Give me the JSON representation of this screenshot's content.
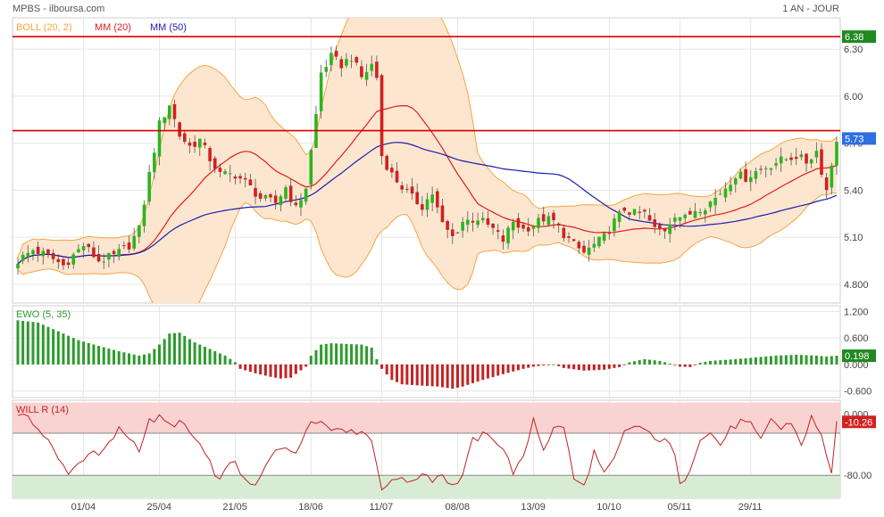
{
  "header": {
    "symbol_source": "MPBS - ilboursa.com",
    "period": "1 AN - JOUR"
  },
  "colors": {
    "boll_fill": "#fde6cf",
    "boll_line": "#f4a544",
    "mm20": "#e31b1b",
    "mm50": "#1b1bb0",
    "up": "#2bb51f",
    "down": "#d12020",
    "hline": "#d10000",
    "ewo_pos": "#2e9a2e",
    "ewo_neg": "#c22323",
    "will_line": "#c22323",
    "will_overbought": "#f9d2d2",
    "will_oversold": "#d8ecd5",
    "badge_green": "#1f8a1f",
    "badge_blue": "#2f6fe0",
    "badge_red": "#d32020",
    "grid": "#e6e6e6"
  },
  "chart_data": [
    {
      "type": "candlestick",
      "legend": [
        {
          "label": "BOLL (20, 2)",
          "color": "#f4a544"
        },
        {
          "label": "MM (20)",
          "color": "#e31b1b"
        },
        {
          "label": "MM (50)",
          "color": "#1b1bb0"
        }
      ],
      "y_ticks": [
        "6.30",
        "6.00",
        "5.70",
        "5.40",
        "5.10",
        "4.800"
      ],
      "y_tick_values": [
        6.3,
        6.0,
        5.7,
        5.4,
        5.1,
        4.8
      ],
      "ylim": [
        4.68,
        6.5
      ],
      "x_labels": [
        "01/04",
        "25/04",
        "21/05",
        "18/06",
        "11/07",
        "08/08",
        "13/09",
        "10/10",
        "05/11",
        "29/11"
      ],
      "x_label_index": [
        13,
        28,
        43,
        58,
        72,
        87,
        102,
        117,
        131,
        145
      ],
      "n_sessions": 163,
      "horizontal_lines": [
        6.38,
        5.78
      ],
      "badges": [
        {
          "text": "6.38",
          "value": 6.38,
          "color": "green"
        },
        {
          "text": "5.73",
          "value": 5.73,
          "color": "blue"
        }
      ],
      "close_anchors": [
        [
          0,
          4.95
        ],
        [
          3,
          5.02
        ],
        [
          6,
          4.98
        ],
        [
          9,
          4.92
        ],
        [
          13,
          5.05
        ],
        [
          16,
          4.95
        ],
        [
          19,
          4.98
        ],
        [
          22,
          5.05
        ],
        [
          24,
          5.15
        ],
        [
          26,
          5.5
        ],
        [
          28,
          5.82
        ],
        [
          30,
          5.95
        ],
        [
          32,
          5.75
        ],
        [
          34,
          5.68
        ],
        [
          36,
          5.72
        ],
        [
          38,
          5.6
        ],
        [
          40,
          5.5
        ],
        [
          43,
          5.5
        ],
        [
          45,
          5.45
        ],
        [
          48,
          5.35
        ],
        [
          51,
          5.32
        ],
        [
          53,
          5.42
        ],
        [
          55,
          5.28
        ],
        [
          57,
          5.42
        ],
        [
          59,
          5.88
        ],
        [
          60,
          6.15
        ],
        [
          62,
          6.25
        ],
        [
          64,
          6.2
        ],
        [
          66,
          6.25
        ],
        [
          68,
          6.12
        ],
        [
          70,
          6.2
        ],
        [
          71,
          6.12
        ],
        [
          72,
          5.62
        ],
        [
          74,
          5.5
        ],
        [
          76,
          5.42
        ],
        [
          78,
          5.35
        ],
        [
          80,
          5.3
        ],
        [
          82,
          5.38
        ],
        [
          84,
          5.18
        ],
        [
          86,
          5.1
        ],
        [
          88,
          5.2
        ],
        [
          91,
          5.22
        ],
        [
          94,
          5.15
        ],
        [
          96,
          5.08
        ],
        [
          98,
          5.2
        ],
        [
          100,
          5.15
        ],
        [
          102,
          5.18
        ],
        [
          104,
          5.22
        ],
        [
          106,
          5.2
        ],
        [
          108,
          5.12
        ],
        [
          110,
          5.05
        ],
        [
          112,
          5.0
        ],
        [
          114,
          5.05
        ],
        [
          116,
          5.1
        ],
        [
          118,
          5.2
        ],
        [
          120,
          5.28
        ],
        [
          122,
          5.25
        ],
        [
          124,
          5.25
        ],
        [
          126,
          5.15
        ],
        [
          128,
          5.15
        ],
        [
          130,
          5.25
        ],
        [
          132,
          5.22
        ],
        [
          134,
          5.28
        ],
        [
          136,
          5.3
        ],
        [
          138,
          5.35
        ],
        [
          140,
          5.42
        ],
        [
          142,
          5.5
        ],
        [
          144,
          5.48
        ],
        [
          146,
          5.52
        ],
        [
          148,
          5.55
        ],
        [
          150,
          5.58
        ],
        [
          152,
          5.6
        ],
        [
          154,
          5.62
        ],
        [
          156,
          5.58
        ],
        [
          158,
          5.65
        ],
        [
          160,
          5.4
        ],
        [
          162,
          5.73
        ]
      ]
    },
    {
      "type": "bar",
      "legend": [
        {
          "label": "EWO (5, 35)",
          "color": "#2e9a2e"
        }
      ],
      "y_ticks": [
        "1.200",
        "0.600",
        "0.000",
        "-0.600"
      ],
      "y_tick_values": [
        1.2,
        0.6,
        0.0,
        -0.6
      ],
      "ylim": [
        -0.75,
        1.33
      ],
      "badges": [
        {
          "text": "0.198",
          "value": 0.198,
          "color": "green"
        }
      ],
      "value_anchors": [
        [
          0,
          1.0
        ],
        [
          4,
          0.95
        ],
        [
          8,
          0.75
        ],
        [
          12,
          0.55
        ],
        [
          16,
          0.42
        ],
        [
          20,
          0.3
        ],
        [
          24,
          0.2
        ],
        [
          26,
          0.25
        ],
        [
          28,
          0.45
        ],
        [
          30,
          0.7
        ],
        [
          32,
          0.72
        ],
        [
          35,
          0.5
        ],
        [
          38,
          0.35
        ],
        [
          41,
          0.2
        ],
        [
          43,
          0.05
        ],
        [
          44,
          -0.1
        ],
        [
          47,
          -0.2
        ],
        [
          50,
          -0.28
        ],
        [
          52,
          -0.32
        ],
        [
          54,
          -0.3
        ],
        [
          57,
          -0.05
        ],
        [
          58,
          0.2
        ],
        [
          60,
          0.45
        ],
        [
          62,
          0.48
        ],
        [
          68,
          0.45
        ],
        [
          70,
          0.38
        ],
        [
          71,
          0.12
        ],
        [
          72,
          -0.1
        ],
        [
          74,
          -0.35
        ],
        [
          76,
          -0.45
        ],
        [
          80,
          -0.48
        ],
        [
          83,
          -0.5
        ],
        [
          86,
          -0.55
        ],
        [
          88,
          -0.5
        ],
        [
          92,
          -0.35
        ],
        [
          96,
          -0.22
        ],
        [
          100,
          -0.1
        ],
        [
          102,
          -0.05
        ],
        [
          104,
          -0.02
        ],
        [
          106,
          0.0
        ],
        [
          108,
          -0.08
        ],
        [
          112,
          -0.14
        ],
        [
          116,
          -0.12
        ],
        [
          119,
          -0.06
        ],
        [
          121,
          0.05
        ],
        [
          124,
          0.12
        ],
        [
          127,
          0.08
        ],
        [
          129,
          0.02
        ],
        [
          131,
          -0.05
        ],
        [
          133,
          -0.06
        ],
        [
          135,
          0.04
        ],
        [
          137,
          0.08
        ],
        [
          142,
          0.12
        ],
        [
          146,
          0.16
        ],
        [
          150,
          0.2
        ],
        [
          154,
          0.22
        ],
        [
          158,
          0.2
        ],
        [
          160,
          0.18
        ],
        [
          162,
          0.198
        ]
      ]
    },
    {
      "type": "line",
      "legend": [
        {
          "label": "WILL R (14)",
          "color": "#c22323"
        }
      ],
      "y_ticks": [
        "0.000",
        "-80.00"
      ],
      "y_tick_values": [
        0,
        -80
      ],
      "ylim": [
        -110,
        18
      ],
      "zones": {
        "overbought": [
          0,
          -25
        ],
        "oversold": [
          -80,
          -105
        ]
      },
      "badges": [
        {
          "text": "-10.26",
          "value": -10.26,
          "color": "red"
        }
      ],
      "value_anchors": [
        [
          0,
          -5
        ],
        [
          2,
          0
        ],
        [
          4,
          -20
        ],
        [
          6,
          -35
        ],
        [
          8,
          -60
        ],
        [
          10,
          -75
        ],
        [
          12,
          -65
        ],
        [
          14,
          -50
        ],
        [
          16,
          -55
        ],
        [
          18,
          -40
        ],
        [
          20,
          -20
        ],
        [
          22,
          -30
        ],
        [
          24,
          -45
        ],
        [
          26,
          -10
        ],
        [
          28,
          -5
        ],
        [
          30,
          -15
        ],
        [
          32,
          -10
        ],
        [
          34,
          -25
        ],
        [
          36,
          -40
        ],
        [
          38,
          -65
        ],
        [
          39,
          -85
        ],
        [
          41,
          -75
        ],
        [
          43,
          -60
        ],
        [
          45,
          -90
        ],
        [
          47,
          -95
        ],
        [
          49,
          -70
        ],
        [
          51,
          -45
        ],
        [
          53,
          -40
        ],
        [
          55,
          -55
        ],
        [
          57,
          -20
        ],
        [
          58,
          -5
        ],
        [
          60,
          -10
        ],
        [
          62,
          -20
        ],
        [
          64,
          -15
        ],
        [
          66,
          -25
        ],
        [
          68,
          -20
        ],
        [
          70,
          -35
        ],
        [
          72,
          -95
        ],
        [
          74,
          -90
        ],
        [
          76,
          -80
        ],
        [
          78,
          -92
        ],
        [
          80,
          -75
        ],
        [
          82,
          -85
        ],
        [
          84,
          -78
        ],
        [
          86,
          -95
        ],
        [
          88,
          -80
        ],
        [
          90,
          -35
        ],
        [
          92,
          -28
        ],
        [
          94,
          -30
        ],
        [
          96,
          -45
        ],
        [
          98,
          -75
        ],
        [
          100,
          -60
        ],
        [
          102,
          -5
        ],
        [
          104,
          -45
        ],
        [
          106,
          -20
        ],
        [
          108,
          -15
        ],
        [
          110,
          -85
        ],
        [
          112,
          -95
        ],
        [
          114,
          -50
        ],
        [
          116,
          -80
        ],
        [
          118,
          -60
        ],
        [
          120,
          -25
        ],
        [
          122,
          -15
        ],
        [
          124,
          -20
        ],
        [
          126,
          -35
        ],
        [
          128,
          -30
        ],
        [
          130,
          -55
        ],
        [
          131,
          -95
        ],
        [
          133,
          -70
        ],
        [
          135,
          -30
        ],
        [
          137,
          -25
        ],
        [
          139,
          -40
        ],
        [
          141,
          -20
        ],
        [
          143,
          -10
        ],
        [
          145,
          -15
        ],
        [
          147,
          -35
        ],
        [
          149,
          -5
        ],
        [
          151,
          -20
        ],
        [
          153,
          -10
        ],
        [
          155,
          -40
        ],
        [
          157,
          -5
        ],
        [
          159,
          -30
        ],
        [
          161,
          -75
        ],
        [
          162,
          -10.26
        ]
      ]
    }
  ]
}
